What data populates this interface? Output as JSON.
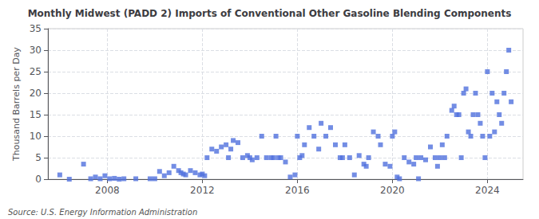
{
  "chart_data": {
    "type": "scatter",
    "title": "Monthly Midwest (PADD 2) Imports of Conventional Other Gasoline Blending Components",
    "ylabel": "Thousand Barrels per Day",
    "annotations": [
      "Source: U.S. Energy Information Administration"
    ],
    "marker": "square",
    "grid": true,
    "xlim": [
      2005.5,
      2025.5
    ],
    "xticks": [
      2008,
      2012,
      2016,
      2020,
      2024
    ],
    "ylim": [
      0,
      35
    ],
    "yticks": [
      0,
      5,
      10,
      15,
      20,
      25,
      30,
      35
    ],
    "x": [
      2006.0,
      2006.4,
      2007.0,
      2007.3,
      2007.5,
      2007.7,
      2007.9,
      2008.1,
      2008.3,
      2008.5,
      2008.7,
      2009.2,
      2009.8,
      2010.0,
      2010.2,
      2010.4,
      2010.6,
      2010.8,
      2011.0,
      2011.1,
      2011.2,
      2011.3,
      2011.5,
      2011.7,
      2011.9,
      2012.0,
      2012.1,
      2012.2,
      2012.4,
      2012.6,
      2012.8,
      2013.0,
      2013.1,
      2013.2,
      2013.3,
      2013.5,
      2013.7,
      2013.9,
      2014.0,
      2014.1,
      2014.3,
      2014.5,
      2014.7,
      2014.9,
      2015.0,
      2015.1,
      2015.2,
      2015.3,
      2015.5,
      2015.7,
      2015.9,
      2016.0,
      2016.1,
      2016.2,
      2016.3,
      2016.5,
      2016.7,
      2016.9,
      2017.0,
      2017.2,
      2017.4,
      2017.6,
      2017.8,
      2017.9,
      2018.0,
      2018.2,
      2018.4,
      2018.6,
      2018.8,
      2018.9,
      2019.0,
      2019.2,
      2019.4,
      2019.5,
      2019.7,
      2019.9,
      2020.0,
      2020.1,
      2020.2,
      2020.3,
      2020.5,
      2020.7,
      2020.9,
      2021.0,
      2021.1,
      2021.2,
      2021.4,
      2021.6,
      2021.8,
      2021.9,
      2022.0,
      2022.1,
      2022.2,
      2022.3,
      2022.5,
      2022.6,
      2022.7,
      2022.8,
      2022.9,
      2023.0,
      2023.1,
      2023.2,
      2023.3,
      2023.4,
      2023.5,
      2023.6,
      2023.7,
      2023.8,
      2023.9,
      2024.0,
      2024.1,
      2024.2,
      2024.3,
      2024.4,
      2024.5,
      2024.6,
      2024.7,
      2024.8,
      2024.9,
      2025.0
    ],
    "values": [
      1.0,
      0.0,
      3.5,
      0.1,
      0.5,
      0.1,
      0.8,
      0.1,
      0.2,
      0.0,
      0.1,
      0.1,
      0.1,
      0.1,
      1.8,
      0.8,
      1.5,
      3.0,
      2.0,
      1.5,
      1.2,
      1.0,
      2.0,
      1.5,
      1.0,
      1.2,
      0.8,
      5.0,
      7.0,
      6.5,
      7.5,
      8.0,
      5.0,
      7.0,
      9.0,
      8.5,
      5.0,
      5.5,
      5.0,
      4.5,
      5.0,
      10.0,
      5.0,
      5.0,
      5.0,
      10.0,
      5.0,
      5.0,
      4.0,
      0.5,
      1.0,
      10.0,
      5.0,
      5.5,
      8.0,
      12.0,
      10.0,
      7.0,
      13.0,
      10.0,
      12.0,
      8.0,
      5.0,
      5.0,
      8.0,
      5.0,
      1.0,
      5.5,
      3.5,
      3.0,
      5.0,
      11.0,
      10.0,
      8.0,
      3.5,
      3.0,
      10.0,
      11.0,
      0.5,
      0.1,
      5.0,
      4.0,
      3.5,
      5.0,
      0.1,
      5.0,
      4.5,
      7.5,
      5.0,
      3.0,
      5.0,
      8.0,
      5.0,
      10.0,
      16.0,
      17.0,
      15.0,
      15.0,
      5.0,
      20.0,
      21.0,
      11.0,
      10.0,
      15.0,
      20.0,
      15.0,
      13.0,
      10.0,
      5.0,
      25.0,
      10.0,
      20.0,
      11.0,
      18.0,
      15.0,
      13.0,
      20.0,
      25.0,
      30.0,
      18.0
    ]
  }
}
